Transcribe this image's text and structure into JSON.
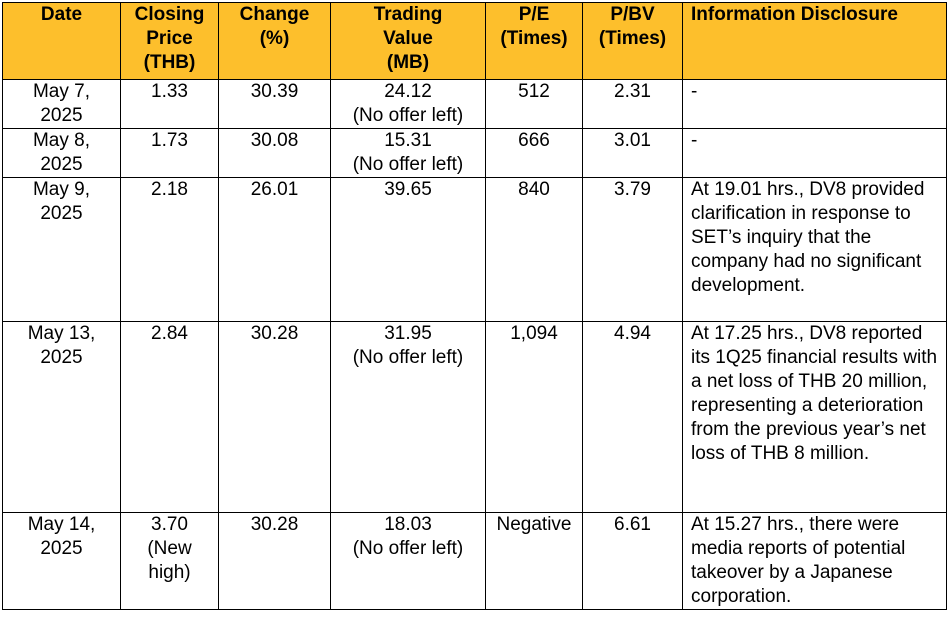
{
  "table": {
    "header": [
      "Date",
      "Closing\nPrice\n(THB)",
      "Change\n(%)",
      "Trading\nValue\n(MB)",
      "P/E\n(Times)",
      "P/BV\n(Times)",
      "Information Disclosure"
    ],
    "rows": [
      [
        "May 7,\n2025",
        "1.33",
        "30.39",
        "24.12\n(No offer left)",
        "512",
        "2.31",
        "-"
      ],
      [
        "May 8,\n2025",
        "1.73",
        "30.08",
        "15.31\n(No offer left)",
        "666",
        "3.01",
        "-"
      ],
      [
        "May 9,\n2025",
        "2.18",
        "26.01",
        "39.65",
        "840",
        "3.79",
        "At 19.01 hrs., DV8 provided clarification in response to SET’s inquiry that the company had no significant development."
      ],
      [
        "May 13,\n2025",
        "2.84",
        "30.28",
        "31.95\n(No offer left)",
        "1,094",
        "4.94",
        "At 17.25 hrs., DV8 reported its 1Q25 financial results with a net loss of THB 20 million, representing a deterioration from the previous year’s net loss of THB 8 million."
      ],
      [
        "May 14,\n2025",
        "3.70\n(New\nhigh)",
        "30.28",
        "18.03\n(No offer left)",
        "Negative",
        "6.61",
        "At 15.27 hrs., there were media reports of potential takeover by a Japanese corporation."
      ]
    ]
  }
}
